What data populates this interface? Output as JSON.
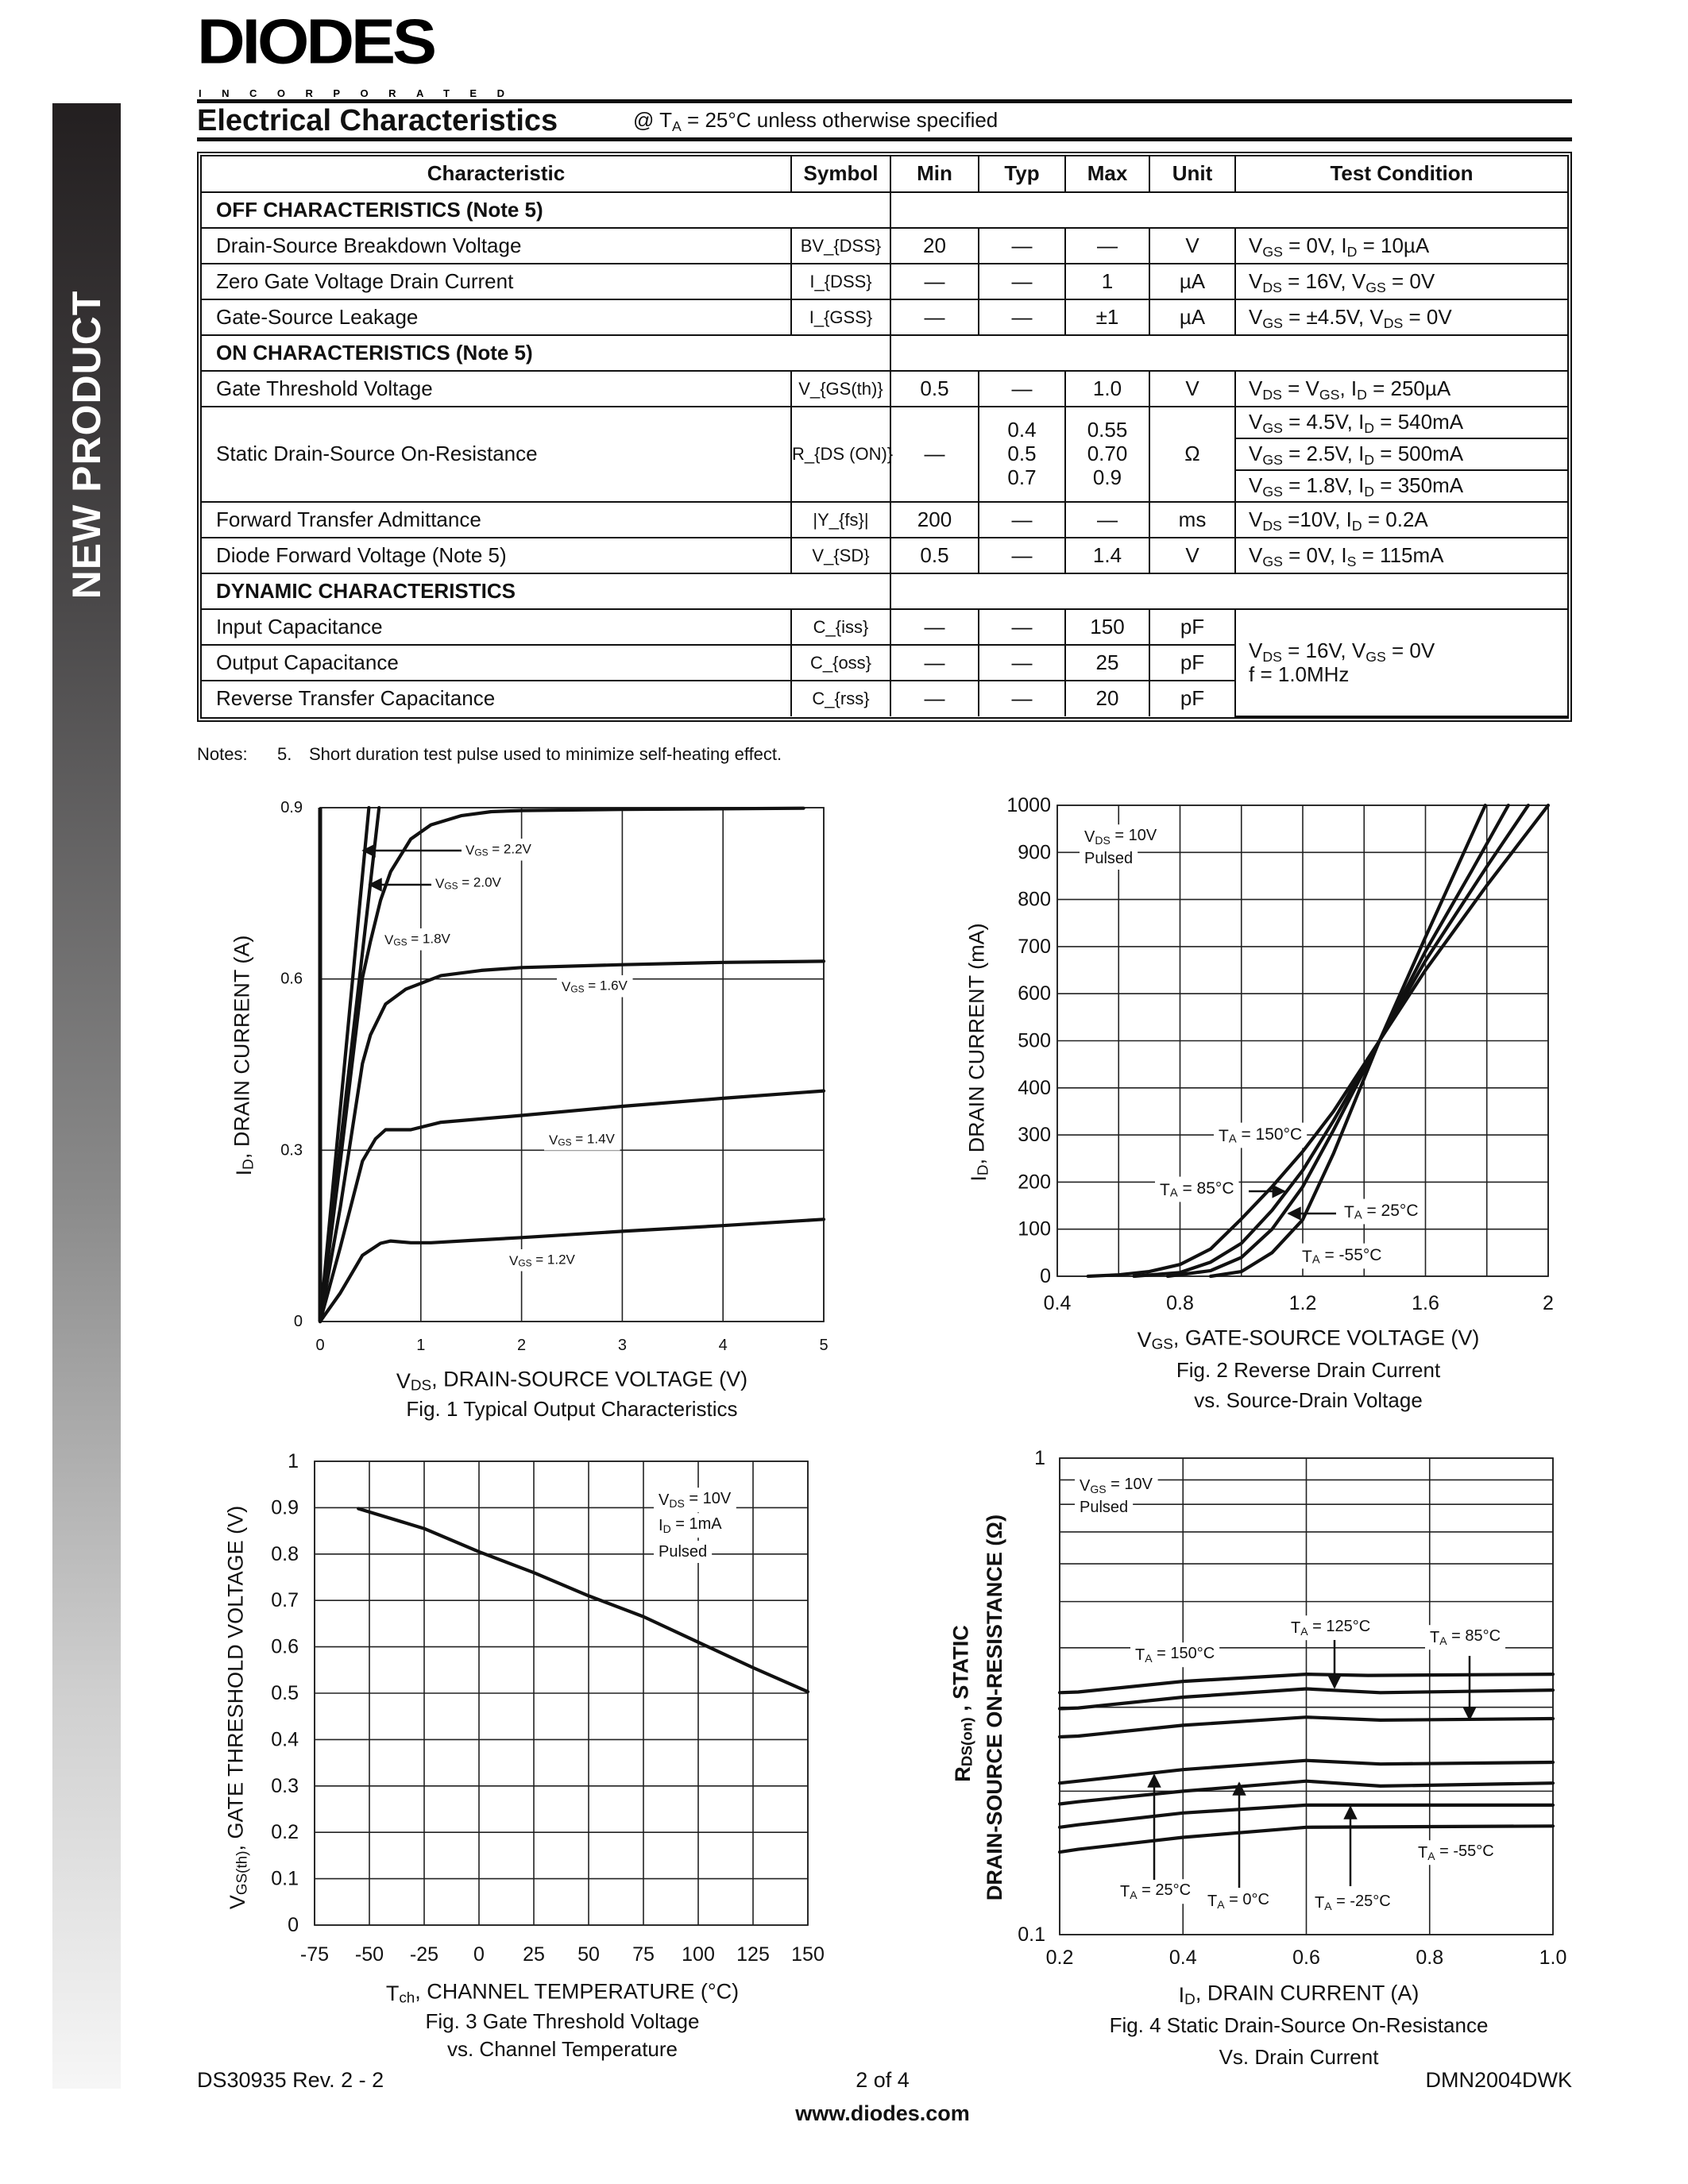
{
  "sidebar": {
    "label": "NEW PRODUCT"
  },
  "logo": {
    "word": "DIODES",
    "sub": "INCORPORATED"
  },
  "header": {
    "title": "Electrical Characteristics",
    "subtitle": "@ T_{A} = 25°C unless otherwise specified"
  },
  "table": {
    "headers": [
      "Characteristic",
      "Symbol",
      "Min",
      "Typ",
      "Max",
      "Unit",
      "Test Condition"
    ],
    "rows": [
      {
        "type": "section",
        "label": "OFF CHARACTERISTICS (Note 5)"
      },
      {
        "type": "row",
        "characteristic": "Drain-Source Breakdown Voltage",
        "symbol": "BV_{DSS}",
        "min": "20",
        "typ": "—",
        "max": "—",
        "unit": "V",
        "condition": "V_{GS} = 0V, I_{D} = 10µA"
      },
      {
        "type": "row",
        "characteristic": "Zero Gate Voltage Drain Current",
        "symbol": "I_{DSS}",
        "min": "—",
        "typ": "—",
        "max": "1",
        "unit": "µA",
        "condition": "V_{DS} = 16V, V_{GS} = 0V"
      },
      {
        "type": "row",
        "characteristic": "Gate-Source Leakage",
        "symbol": "I_{GSS}",
        "min": "—",
        "typ": "—",
        "max": "±1",
        "unit": "µA",
        "condition": "V_{GS} = ±4.5V, V_{DS} = 0V"
      },
      {
        "type": "section",
        "label": "ON CHARACTERISTICS (Note 5)"
      },
      {
        "type": "row",
        "characteristic": "Gate Threshold Voltage",
        "symbol": "V_{GS(th)}",
        "min": "0.5",
        "typ": "—",
        "max": "1.0",
        "unit": "V",
        "condition": "V_{DS} = V_{GS}, I_{D} = 250µA"
      },
      {
        "type": "multi",
        "characteristic": "Static Drain-Source On-Resistance",
        "symbol": "R_{DS (ON)}",
        "min": "—",
        "typ": [
          "0.4",
          "0.5",
          "0.7"
        ],
        "max": [
          "0.55",
          "0.70",
          "0.9"
        ],
        "unit": "Ω",
        "conditions": [
          "V_{GS} = 4.5V, I_{D} = 540mA",
          "V_{GS} = 2.5V, I_{D} = 500mA",
          "V_{GS} = 1.8V, I_{D} = 350mA"
        ]
      },
      {
        "type": "row",
        "characteristic": "Forward Transfer Admittance",
        "symbol": "|Y_{fs}|",
        "min": "200",
        "typ": "—",
        "max": "—",
        "unit": "ms",
        "condition": "V_{DS} =10V, I_{D} = 0.2A"
      },
      {
        "type": "row",
        "characteristic": "Diode Forward Voltage (Note 5)",
        "symbol": "V_{SD}",
        "min": "0.5",
        "typ": "—",
        "max": "1.4",
        "unit": "V",
        "condition": "V_{GS} = 0V, I_{S} = 115mA"
      },
      {
        "type": "section",
        "label": "DYNAMIC CHARACTERISTICS"
      },
      {
        "type": "group",
        "condition": [
          "V_{DS} = 16V, V_{GS} = 0V",
          "f = 1.0MHz"
        ],
        "rows": [
          {
            "characteristic": "Input Capacitance",
            "symbol": "C_{iss}",
            "min": "—",
            "typ": "—",
            "max": "150",
            "unit": "pF"
          },
          {
            "characteristic": "Output Capacitance",
            "symbol": "C_{oss}",
            "min": "—",
            "typ": "—",
            "max": "25",
            "unit": "pF"
          },
          {
            "characteristic": "Reverse Transfer Capacitance",
            "symbol": "C_{rss}",
            "min": "—",
            "typ": "—",
            "max": "20",
            "unit": "pF"
          }
        ]
      }
    ]
  },
  "notes": {
    "label": "Notes:",
    "number": "5.",
    "text": "Short duration test pulse used to minimize self-heating effect."
  },
  "chart_data": [
    {
      "type": "line",
      "title": [
        "Fig. 1  Typical Output Characteristics"
      ],
      "xlabel": "V_{DS}, DRAIN-SOURCE VOLTAGE (V)",
      "ylabel": "I_{D}, DRAIN CURRENT (A)",
      "xlim": [
        0,
        5
      ],
      "ylim": [
        0,
        0.9
      ],
      "yscale": "linear",
      "grid": true,
      "x_tick_labels": [
        "0",
        "1",
        "2",
        "3",
        "4",
        "5"
      ],
      "y_tick_labels": [
        "0",
        "0.3",
        "0.6",
        "0.9"
      ],
      "notes": [],
      "series": [
        {
          "name": "V_{GS} = 2.2V",
          "points": [
            [
              0,
              0
            ],
            [
              0.484,
              0.9
            ]
          ]
        },
        {
          "name": "V_{GS} = 2.0V",
          "points": [
            [
              0,
              0
            ],
            [
              0.585,
              0.9
            ]
          ]
        },
        {
          "name": "V_{GS} = 1.8V",
          "points": [
            [
              0,
              0
            ],
            [
              0.2,
              0.28
            ],
            [
              0.42,
              0.602
            ],
            [
              0.5,
              0.666
            ],
            [
              0.6,
              0.738
            ],
            [
              0.7,
              0.788
            ],
            [
              0.9,
              0.845
            ],
            [
              1.1,
              0.87
            ],
            [
              1.4,
              0.886
            ],
            [
              1.7,
              0.893
            ],
            [
              2,
              0.895
            ],
            [
              3,
              0.897
            ],
            [
              4.8,
              0.899
            ]
          ]
        },
        {
          "name": "V_{GS} = 1.6V",
          "points": [
            [
              0,
              0
            ],
            [
              0.2,
              0.2
            ],
            [
              0.42,
              0.452
            ],
            [
              0.5,
              0.502
            ],
            [
              0.65,
              0.556
            ],
            [
              0.85,
              0.582
            ],
            [
              1.2,
              0.606
            ],
            [
              1.6,
              0.615
            ],
            [
              2,
              0.62
            ],
            [
              3,
              0.625
            ],
            [
              4,
              0.629
            ],
            [
              5,
              0.631
            ]
          ]
        },
        {
          "name": "V_{GS} = 1.4V",
          "points": [
            [
              0,
              0
            ],
            [
              0.2,
              0.13
            ],
            [
              0.42,
              0.281
            ],
            [
              0.55,
              0.32
            ],
            [
              0.65,
              0.336
            ],
            [
              0.9,
              0.336
            ],
            [
              1.2,
              0.349
            ],
            [
              2,
              0.361
            ],
            [
              3,
              0.377
            ],
            [
              4,
              0.391
            ],
            [
              5,
              0.404
            ]
          ]
        },
        {
          "name": "V_{GS} = 1.2V",
          "points": [
            [
              0,
              0
            ],
            [
              0.2,
              0.05
            ],
            [
              0.42,
              0.116
            ],
            [
              0.6,
              0.137
            ],
            [
              0.7,
              0.141
            ],
            [
              0.9,
              0.138
            ],
            [
              1.1,
              0.138
            ],
            [
              1.5,
              0.142
            ],
            [
              2,
              0.147
            ],
            [
              3,
              0.158
            ],
            [
              4,
              0.168
            ],
            [
              5,
              0.179
            ]
          ]
        }
      ]
    },
    {
      "type": "line",
      "title": [
        "Fig. 2  Reverse Drain Current",
        "vs. Source-Drain Voltage"
      ],
      "xlabel": "V_{GS}, GATE-SOURCE VOLTAGE (V)",
      "ylabel": "I_{D}, DRAIN CURRENT (mA)",
      "xlim": [
        0.4,
        2
      ],
      "ylim": [
        0,
        1000
      ],
      "yscale": "linear",
      "grid": true,
      "x_tick_labels": [
        "0.4",
        "0.8",
        "1.2",
        "1.6",
        "2"
      ],
      "y_tick_labels": [
        "0",
        "100",
        "200",
        "300",
        "400",
        "500",
        "600",
        "700",
        "800",
        "900",
        "1000"
      ],
      "notes": [
        "V_{DS} = 10V",
        "Pulsed"
      ],
      "series": [
        {
          "name": "T_{A} = 150°C",
          "points": [
            [
              0.5,
              0
            ],
            [
              0.6,
              3
            ],
            [
              0.7,
              10
            ],
            [
              0.8,
              25
            ],
            [
              0.9,
              58
            ],
            [
              1.0,
              122
            ],
            [
              1.1,
              190
            ],
            [
              1.2,
              265
            ],
            [
              1.3,
              350
            ],
            [
              1.45,
              500
            ],
            [
              1.6,
              650
            ],
            [
              1.8,
              830
            ],
            [
              2.0,
              1000
            ]
          ]
        },
        {
          "name": "T_{A} = 85°C",
          "points": [
            [
              0.65,
              0
            ],
            [
              0.8,
              8
            ],
            [
              0.9,
              30
            ],
            [
              1.0,
              70
            ],
            [
              1.1,
              140
            ],
            [
              1.2,
              225
            ],
            [
              1.3,
              330
            ],
            [
              1.45,
              500
            ],
            [
              1.6,
              670
            ],
            [
              1.8,
              870
            ],
            [
              1.935,
              1000
            ]
          ]
        },
        {
          "name": "T_{A} = 25°C",
          "points": [
            [
              0.76,
              0
            ],
            [
              0.9,
              12
            ],
            [
              1.0,
              40
            ],
            [
              1.1,
              100
            ],
            [
              1.2,
              190
            ],
            [
              1.3,
              310
            ],
            [
              1.45,
              500
            ],
            [
              1.6,
              690
            ],
            [
              1.75,
              860
            ],
            [
              1.87,
              1000
            ]
          ]
        },
        {
          "name": "T_{A} = -55°C",
          "points": [
            [
              0.9,
              0
            ],
            [
              1.0,
              10
            ],
            [
              1.1,
              50
            ],
            [
              1.2,
              120
            ],
            [
              1.3,
              260
            ],
            [
              1.4,
              420
            ],
            [
              1.45,
              500
            ],
            [
              1.6,
              720
            ],
            [
              1.795,
              1000
            ]
          ]
        }
      ]
    },
    {
      "type": "line",
      "title": [
        "Fig. 3  Gate Threshold Voltage",
        "vs. Channel Temperature"
      ],
      "xlabel": "T_{ch}, CHANNEL TEMPERATURE (°C)",
      "ylabel": "V_{GS(th)}, GATE THRESHOLD VOLTAGE (V)",
      "xlim": [
        -75,
        150
      ],
      "ylim": [
        0,
        1
      ],
      "yscale": "linear",
      "grid": true,
      "x_tick_labels": [
        "-75",
        "-50",
        "-25",
        "0",
        "25",
        "50",
        "75",
        "100",
        "125",
        "150"
      ],
      "y_tick_labels": [
        "0",
        "0.1",
        "0.2",
        "0.3",
        "0.4",
        "0.5",
        "0.6",
        "0.7",
        "0.8",
        "0.9",
        "1"
      ],
      "notes": [
        "V_{DS} = 10V",
        "I_{D} = 1mA",
        "Pulsed"
      ],
      "series": [
        {
          "points": [
            [
              -55,
              0.898
            ],
            [
              -25,
              0.855
            ],
            [
              0,
              0.805
            ],
            [
              25,
              0.76
            ],
            [
              50,
              0.71
            ],
            [
              75,
              0.665
            ],
            [
              100,
              0.61
            ],
            [
              125,
              0.555
            ],
            [
              150,
              0.503
            ]
          ]
        }
      ]
    },
    {
      "type": "line",
      "title": [
        "Fig. 4 Static Drain-Source On-Resistance",
        "Vs. Drain Current"
      ],
      "xlabel": "I_{D}, DRAIN CURRENT (A)",
      "ylabel": [
        "R_{DS(on)} , STATIC",
        "DRAIN-SOURCE ON-RESISTANCE (Ω)"
      ],
      "xlim": [
        0.2,
        1.0
      ],
      "ylim": [
        0.1,
        1
      ],
      "yscale": "log",
      "grid": true,
      "x_tick_labels": [
        "0.2",
        "0.4",
        "0.6",
        "0.8",
        "1.0"
      ],
      "y_tick_labels": [
        "0.1",
        "1"
      ],
      "notes": [
        "V_{GS} = 10V",
        "Pulsed"
      ],
      "series": [
        {
          "name": "T_{A} = 150°C",
          "points": [
            [
              0.2,
              0.322
            ],
            [
              0.23,
              0.323
            ],
            [
              0.4,
              0.34
            ],
            [
              0.6,
              0.352
            ],
            [
              0.7,
              0.35
            ],
            [
              1.0,
              0.352
            ]
          ]
        },
        {
          "name": "T_{A} = 125°C",
          "points": [
            [
              0.2,
              0.298
            ],
            [
              0.23,
              0.299
            ],
            [
              0.4,
              0.315
            ],
            [
              0.6,
              0.328
            ],
            [
              0.72,
              0.322
            ],
            [
              1.0,
              0.326
            ]
          ]
        },
        {
          "name": "T_{A} = 85°C",
          "points": [
            [
              0.2,
              0.26
            ],
            [
              0.23,
              0.261
            ],
            [
              0.4,
              0.275
            ],
            [
              0.6,
              0.286
            ],
            [
              0.72,
              0.282
            ],
            [
              1.0,
              0.284
            ]
          ]
        },
        {
          "name": "T_{A} = 25°C",
          "points": [
            [
              0.2,
              0.208
            ],
            [
              0.23,
              0.21
            ],
            [
              0.4,
              0.222
            ],
            [
              0.6,
              0.232
            ],
            [
              0.72,
              0.228
            ],
            [
              1.0,
              0.23
            ]
          ]
        },
        {
          "name": "T_{A} = 0°C",
          "points": [
            [
              0.2,
              0.188
            ],
            [
              0.23,
              0.19
            ],
            [
              0.4,
              0.2
            ],
            [
              0.6,
              0.21
            ],
            [
              0.72,
              0.205
            ],
            [
              1.0,
              0.208
            ]
          ]
        },
        {
          "name": "T_{A} = -25°C",
          "points": [
            [
              0.2,
              0.168
            ],
            [
              0.23,
              0.17
            ],
            [
              0.4,
              0.18
            ],
            [
              0.6,
              0.187
            ],
            [
              1.0,
              0.187
            ]
          ]
        },
        {
          "name": "T_{A} = -55°C",
          "points": [
            [
              0.2,
              0.149
            ],
            [
              0.23,
              0.151
            ],
            [
              0.4,
              0.16
            ],
            [
              0.6,
              0.168
            ],
            [
              1.0,
              0.169
            ]
          ]
        }
      ]
    }
  ],
  "footer": {
    "doc": "DS30935 Rev. 2 - 2",
    "page": "2 of 4",
    "part": "DMN2004DWK",
    "url": "www.diodes.com"
  }
}
